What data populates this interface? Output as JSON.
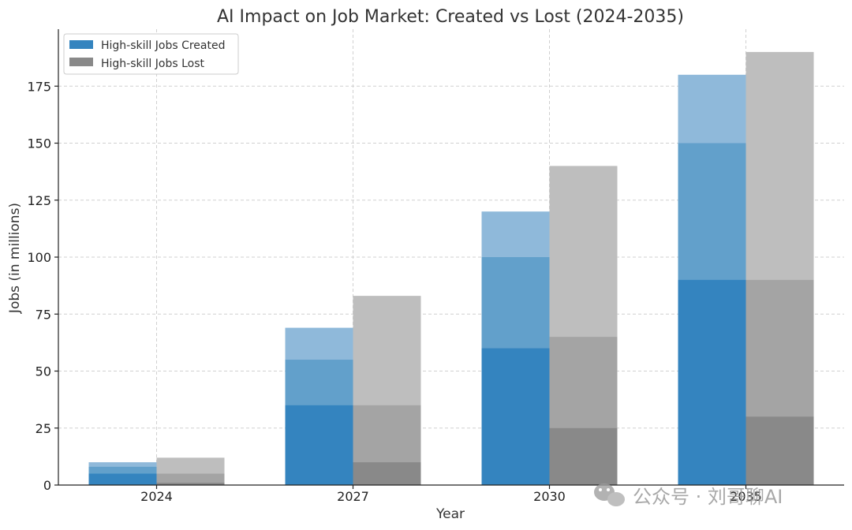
{
  "chart_data": {
    "type": "bar",
    "title": "AI Impact on Job Market: Created vs Lost (2024-2035)",
    "xlabel": "Year",
    "ylabel": "Jobs (in millions)",
    "categories": [
      "2024",
      "2027",
      "2030",
      "2035"
    ],
    "ylim": [
      0,
      200
    ],
    "yticks": [
      0,
      25,
      50,
      75,
      100,
      125,
      150,
      175
    ],
    "grid": true,
    "legend_position": "top-left",
    "series": [
      {
        "name": "High-skill Jobs Created",
        "group": "created",
        "color": "#3484bf",
        "values": [
          5,
          35,
          60,
          90
        ]
      },
      {
        "group": "created",
        "color": "#62a0cb",
        "values": [
          8,
          55,
          100,
          150
        ]
      },
      {
        "group": "created",
        "color": "#8fb9da",
        "values": [
          10,
          69,
          120,
          180
        ]
      },
      {
        "name": "High-skill Jobs Lost",
        "group": "lost",
        "color": "#898989",
        "values": [
          1,
          10,
          25,
          30
        ]
      },
      {
        "group": "lost",
        "color": "#a4a4a4",
        "values": [
          5,
          35,
          65,
          90
        ]
      },
      {
        "group": "lost",
        "color": "#bebebe",
        "values": [
          12,
          83,
          140,
          190
        ]
      }
    ],
    "legend": [
      {
        "label": "High-skill Jobs Created",
        "color": "#3484bf"
      },
      {
        "label": "High-skill Jobs Lost",
        "color": "#898989"
      }
    ]
  },
  "watermark": {
    "text": "公众号 · 刘哥聊AI",
    "icon": "wechat-icon"
  }
}
